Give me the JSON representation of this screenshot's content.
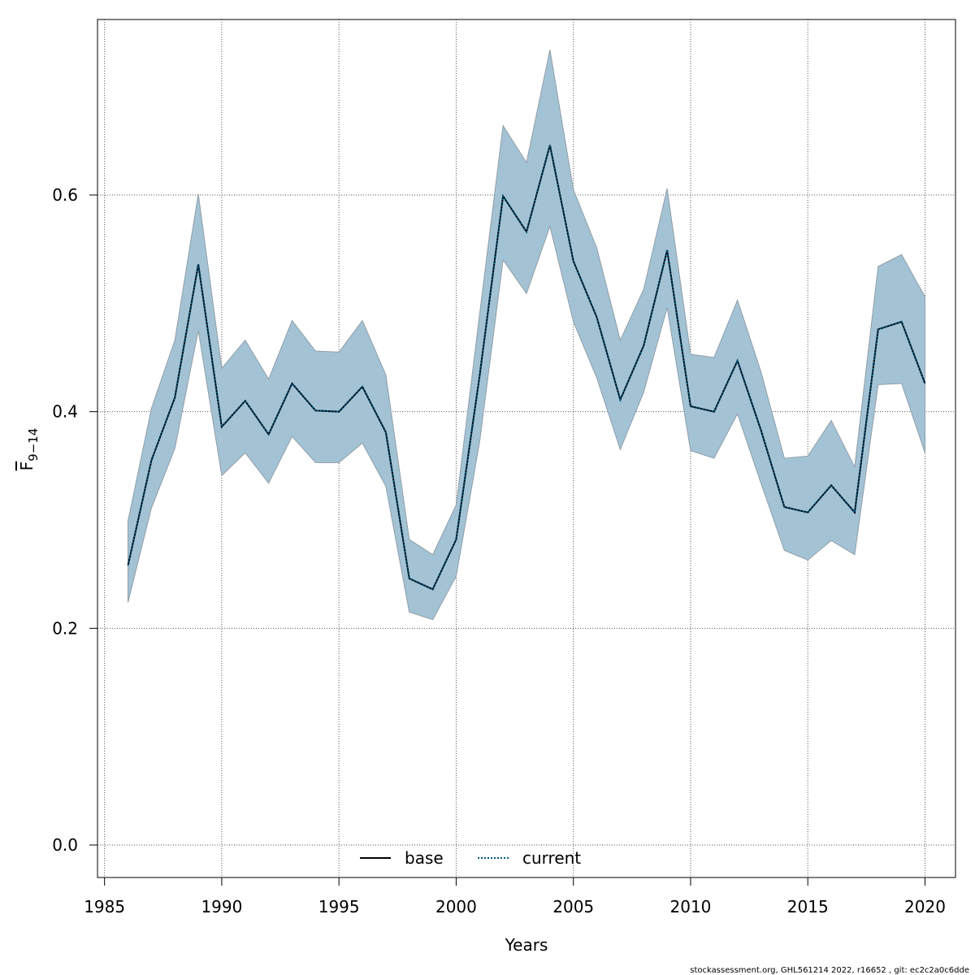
{
  "chart_data": {
    "type": "line",
    "xlabel": "Years",
    "ylabel_main": "F",
    "ylabel_sub": "9−14",
    "xlim": [
      1984.7,
      2021.3
    ],
    "ylim": [
      -0.03,
      0.762
    ],
    "xticks": [
      1985,
      1990,
      1995,
      2000,
      2005,
      2010,
      2015,
      2020
    ],
    "yticks": [
      0.0,
      0.2,
      0.4,
      0.6
    ],
    "ytick_labels": [
      "0.0",
      "0.2",
      "0.4",
      "0.6"
    ],
    "grid": true,
    "legend_position": "bottom-center",
    "colors": {
      "band_fill": "#a3c3d5",
      "band_edge": "#8f9ea8",
      "base": "#000000",
      "current": "#005a87"
    },
    "years": [
      1986,
      1987,
      1988,
      1989,
      1990,
      1991,
      1992,
      1993,
      1994,
      1995,
      1996,
      1997,
      1998,
      1999,
      2000,
      2001,
      2002,
      2003,
      2004,
      2005,
      2006,
      2007,
      2008,
      2009,
      2010,
      2011,
      2012,
      2013,
      2014,
      2015,
      2016,
      2017,
      2018,
      2019,
      2020
    ],
    "upper": [
      0.299,
      0.403,
      0.466,
      0.601,
      0.44,
      0.466,
      0.43,
      0.484,
      0.456,
      0.455,
      0.484,
      0.434,
      0.282,
      0.268,
      0.314,
      0.49,
      0.664,
      0.63,
      0.734,
      0.605,
      0.551,
      0.466,
      0.513,
      0.606,
      0.453,
      0.45,
      0.503,
      0.437,
      0.357,
      0.359,
      0.392,
      0.349,
      0.534,
      0.545,
      0.506
    ],
    "lower": [
      0.224,
      0.311,
      0.366,
      0.475,
      0.341,
      0.362,
      0.334,
      0.377,
      0.353,
      0.353,
      0.371,
      0.331,
      0.215,
      0.208,
      0.248,
      0.372,
      0.54,
      0.509,
      0.571,
      0.483,
      0.431,
      0.365,
      0.418,
      0.496,
      0.364,
      0.357,
      0.398,
      0.334,
      0.272,
      0.263,
      0.281,
      0.268,
      0.425,
      0.426,
      0.362
    ],
    "series": [
      {
        "name": "base",
        "style": "solid",
        "values": [
          0.258,
          0.355,
          0.413,
          0.536,
          0.386,
          0.41,
          0.379,
          0.426,
          0.401,
          0.4,
          0.423,
          0.381,
          0.246,
          0.236,
          0.282,
          0.433,
          0.599,
          0.566,
          0.646,
          0.539,
          0.487,
          0.411,
          0.461,
          0.549,
          0.405,
          0.4,
          0.447,
          0.383,
          0.312,
          0.307,
          0.332,
          0.307,
          0.476,
          0.483,
          0.426
        ]
      },
      {
        "name": "current",
        "style": "dotted",
        "values": [
          0.258,
          0.355,
          0.413,
          0.536,
          0.386,
          0.41,
          0.379,
          0.426,
          0.401,
          0.4,
          0.423,
          0.381,
          0.246,
          0.236,
          0.282,
          0.433,
          0.599,
          0.566,
          0.646,
          0.539,
          0.487,
          0.411,
          0.461,
          0.549,
          0.405,
          0.4,
          0.447,
          0.383,
          0.312,
          0.307,
          0.332,
          0.307,
          0.476,
          0.483,
          0.426
        ]
      }
    ]
  },
  "footer": "stockassessment.org, GHL561214  2022, r16652 , git: ec2c2a0c6dde"
}
